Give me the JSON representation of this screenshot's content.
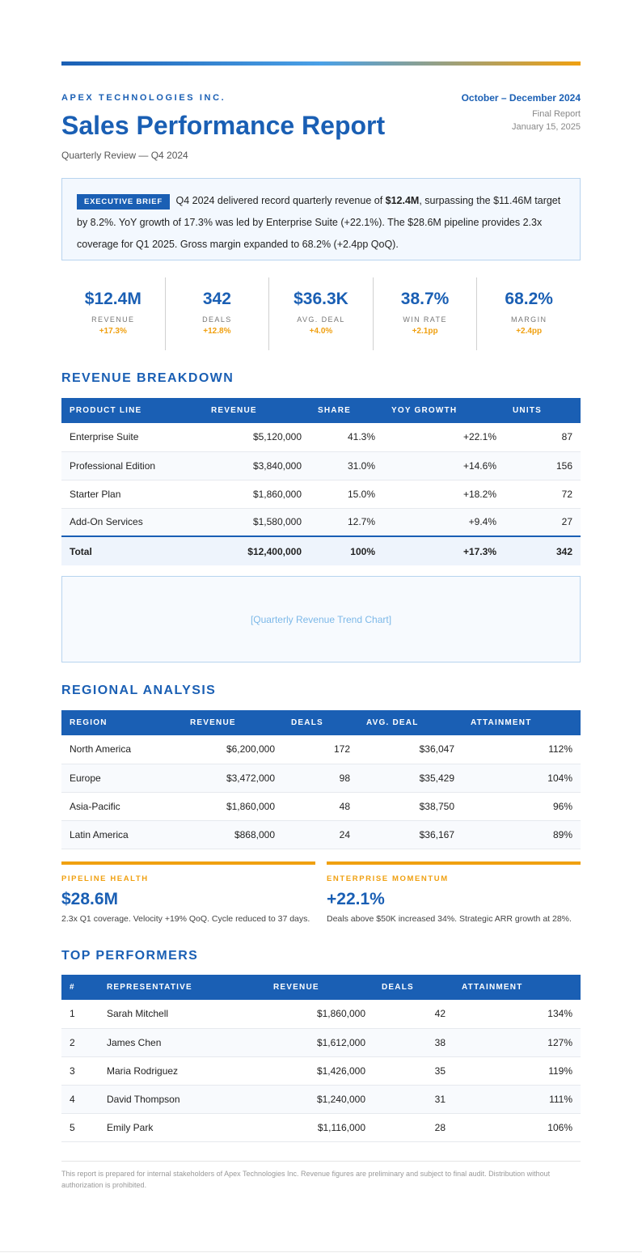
{
  "header": {
    "company": "APEX TECHNOLOGIES INC.",
    "title": "Sales Performance Report",
    "subtitle": "Quarterly Review — Q4 2024",
    "period": "October – December 2024",
    "status": "Final Report",
    "date": "January 15, 2025"
  },
  "brief": {
    "badge": "EXECUTIVE BRIEF",
    "text_1": " Q4 2024 delivered record quarterly revenue of ",
    "highlight": "$12.4M",
    "text_2": ", surpassing the $11.46M target by 8.2%. YoY growth of 17.3% was led by Enterprise Suite (+22.1%). The $28.6M pipeline provides 2.3x coverage for Q1 2025. Gross margin expanded to 68.2% (+2.4pp QoQ)."
  },
  "kpis": [
    {
      "value": "$12.4M",
      "label": "REVENUE",
      "change": "+17.3%"
    },
    {
      "value": "342",
      "label": "DEALS",
      "change": "+12.8%"
    },
    {
      "value": "$36.3K",
      "label": "AVG. DEAL",
      "change": "+4.0%"
    },
    {
      "value": "38.7%",
      "label": "WIN RATE",
      "change": "+2.1pp"
    },
    {
      "value": "68.2%",
      "label": "MARGIN",
      "change": "+2.4pp"
    }
  ],
  "revenue": {
    "heading": "REVENUE BREAKDOWN",
    "columns": [
      "PRODUCT LINE",
      "REVENUE",
      "SHARE",
      "YOY GROWTH",
      "UNITS"
    ],
    "rows": [
      [
        "Enterprise Suite",
        "$5,120,000",
        "41.3%",
        "+22.1%",
        "87"
      ],
      [
        "Professional Edition",
        "$3,840,000",
        "31.0%",
        "+14.6%",
        "156"
      ],
      [
        "Starter Plan",
        "$1,860,000",
        "15.0%",
        "+18.2%",
        "72"
      ],
      [
        "Add-On Services",
        "$1,580,000",
        "12.7%",
        "+9.4%",
        "27"
      ]
    ],
    "total": [
      "Total",
      "$12,400,000",
      "100%",
      "+17.3%",
      "342"
    ]
  },
  "chart_placeholder": "[Quarterly Revenue Trend Chart]",
  "regional": {
    "heading": "REGIONAL ANALYSIS",
    "columns": [
      "REGION",
      "REVENUE",
      "DEALS",
      "AVG. DEAL",
      "ATTAINMENT"
    ],
    "rows": [
      [
        "North America",
        "$6,200,000",
        "172",
        "$36,047",
        "112%"
      ],
      [
        "Europe",
        "$3,472,000",
        "98",
        "$35,429",
        "104%"
      ],
      [
        "Asia-Pacific",
        "$1,860,000",
        "48",
        "$38,750",
        "96%"
      ],
      [
        "Latin America",
        "$868,000",
        "24",
        "$36,167",
        "89%"
      ]
    ]
  },
  "cards": [
    {
      "label": "PIPELINE HEALTH",
      "value": "$28.6M",
      "text": "2.3x Q1 coverage. Velocity +19% QoQ. Cycle reduced to 37 days."
    },
    {
      "label": "ENTERPRISE MOMENTUM",
      "value": "+22.1%",
      "text": "Deals above $50K increased 34%. Strategic ARR growth at 28%."
    }
  ],
  "performers": {
    "heading": "TOP PERFORMERS",
    "columns": [
      "#",
      "REPRESENTATIVE",
      "REVENUE",
      "DEALS",
      "ATTAINMENT"
    ],
    "rows": [
      [
        "1",
        "Sarah Mitchell",
        "$1,860,000",
        "42",
        "134%"
      ],
      [
        "2",
        "James Chen",
        "$1,612,000",
        "38",
        "127%"
      ],
      [
        "3",
        "Maria Rodriguez",
        "$1,426,000",
        "35",
        "119%"
      ],
      [
        "4",
        "David Thompson",
        "$1,240,000",
        "31",
        "111%"
      ],
      [
        "5",
        "Emily Park",
        "$1,116,000",
        "28",
        "106%"
      ]
    ]
  },
  "footer": "This report is prepared for internal stakeholders of Apex Technologies Inc. Revenue figures are preliminary and subject to final audit. Distribution without authorization is prohibited.",
  "colors": {
    "primary": "#1a5fb4",
    "accent": "#f0a010"
  }
}
